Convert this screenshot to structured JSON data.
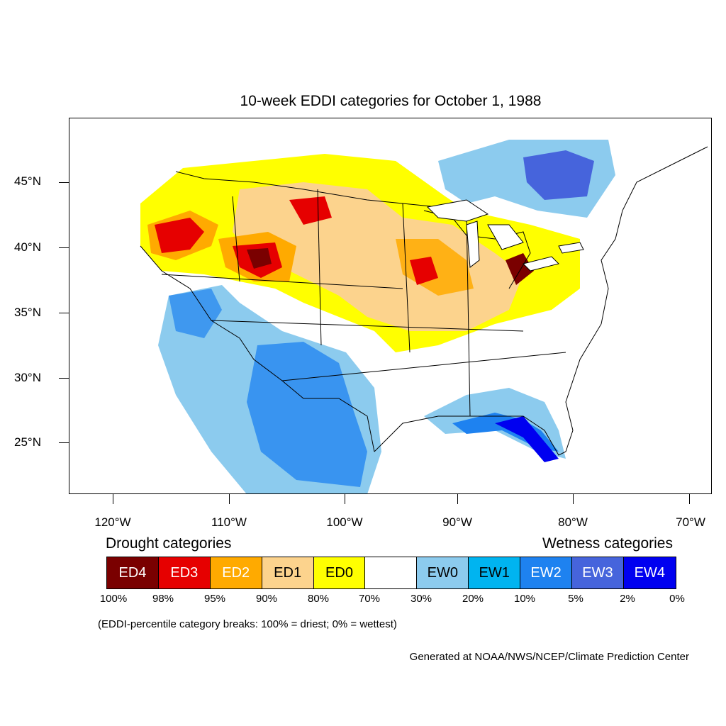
{
  "title": "10-week EDDI categories for October 1, 1988",
  "latitude_labels": [
    "45°N",
    "40°N",
    "35°N",
    "30°N",
    "25°N"
  ],
  "longitude_labels": [
    "120°W",
    "110°W",
    "100°W",
    "90°W",
    "80°W",
    "70°W"
  ],
  "legend": {
    "drought_heading": "Drought categories",
    "wetness_heading": "Wetness categories",
    "categories": [
      {
        "label": "ED4",
        "color": "#7a0000",
        "text_color": "#ffffff"
      },
      {
        "label": "ED3",
        "color": "#e60000",
        "text_color": "#ffffff"
      },
      {
        "label": "ED2",
        "color": "#ffaa00",
        "text_color": "#ffffff"
      },
      {
        "label": "ED1",
        "color": "#fcd38d",
        "text_color": "#000000"
      },
      {
        "label": "ED0",
        "color": "#ffff00",
        "text_color": "#000000"
      },
      {
        "label": "",
        "color": "#ffffff",
        "text_color": "#000000"
      },
      {
        "label": "EW0",
        "color": "#8ccbee",
        "text_color": "#000000"
      },
      {
        "label": "EW1",
        "color": "#00b4f0",
        "text_color": "#000000"
      },
      {
        "label": "EW2",
        "color": "#1e82f0",
        "text_color": "#ffffff"
      },
      {
        "label": "EW3",
        "color": "#4664dc",
        "text_color": "#ffffff"
      },
      {
        "label": "EW4",
        "color": "#0000f0",
        "text_color": "#ffffff"
      }
    ],
    "percentile_breaks": [
      "100%",
      "98%",
      "95%",
      "90%",
      "80%",
      "70%",
      "30%",
      "20%",
      "10%",
      "5%",
      "2%",
      "0%"
    ]
  },
  "note": "(EDDI-percentile category breaks: 100% = driest; 0% = wettest)",
  "credit": "Generated at NOAA/NWS/NCEP/Climate Prediction Center"
}
